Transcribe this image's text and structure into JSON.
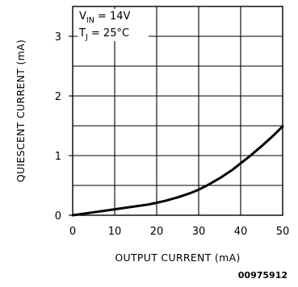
{
  "chart_data": {
    "type": "line",
    "xlabel": "OUTPUT CURRENT (mA)",
    "ylabel": "QUIESCENT CURRENT (mA)",
    "xlim": [
      0,
      50
    ],
    "ylim": [
      0,
      3.5
    ],
    "x_ticks": [
      "0",
      "10",
      "20",
      "30",
      "40",
      "50"
    ],
    "y_ticks": [
      "0",
      "1",
      "2",
      "3"
    ],
    "grid": true,
    "annotations": {
      "vin_main": "V",
      "vin_sub": "IN",
      "vin_value": " = 14V",
      "tj_main": "T",
      "tj_sub": "J",
      "tj_value": " = 25°C"
    },
    "series": [
      {
        "x": [
          0,
          2,
          5,
          8,
          10,
          12,
          15,
          18,
          20,
          22,
          25,
          28,
          30,
          32,
          35,
          38,
          40,
          42,
          45,
          48,
          50
        ],
        "values": [
          0.0,
          0.02,
          0.05,
          0.08,
          0.1,
          0.12,
          0.15,
          0.18,
          0.21,
          0.24,
          0.3,
          0.37,
          0.43,
          0.5,
          0.62,
          0.76,
          0.87,
          0.98,
          1.16,
          1.35,
          1.49
        ]
      }
    ]
  },
  "figure_id": "00975912"
}
